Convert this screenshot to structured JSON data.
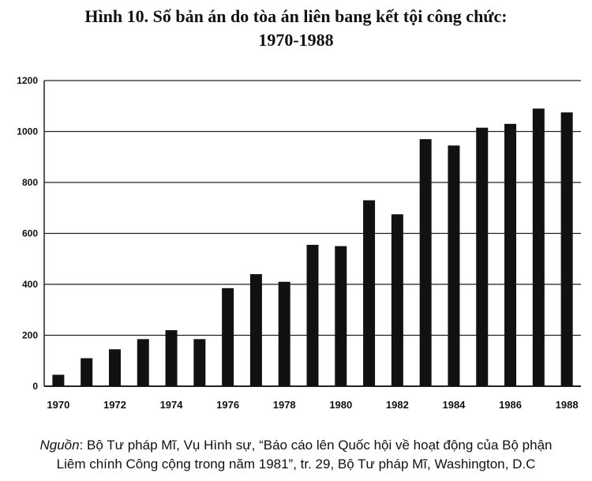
{
  "title_line1": "Hình 10. Số bản án do tòa án liên bang kết tội công chức:",
  "title_line2": "1970-1988",
  "source": {
    "label": "Nguồn",
    "line1_rest": ": Bộ Tư pháp Mĩ, Vụ Hình sự, “Báo cáo lên Quốc hội về hoạt động của Bộ phận",
    "line2": "Liêm chính Công cộng trong năm 1981”, tr. 29, Bộ Tư pháp Mĩ, Washington, D.C"
  },
  "chart_data": {
    "type": "bar",
    "title": "Hình 10. Số bản án do tòa án liên bang kết tội công chức: 1970-1988",
    "xlabel": "",
    "ylabel": "",
    "categories": [
      "1970",
      "1971",
      "1972",
      "1973",
      "1974",
      "1975",
      "1976",
      "1977",
      "1978",
      "1979",
      "1980",
      "1981",
      "1982",
      "1983",
      "1984",
      "1985",
      "1986",
      "1987",
      "1988"
    ],
    "values": [
      45,
      110,
      145,
      185,
      220,
      185,
      385,
      440,
      410,
      555,
      550,
      730,
      675,
      970,
      945,
      1015,
      1030,
      1090,
      1075
    ],
    "x_tick_labels": [
      "1970",
      "1972",
      "1974",
      "1976",
      "1978",
      "1980",
      "1982",
      "1984",
      "1986",
      "1988"
    ],
    "y_ticks": [
      0,
      200,
      400,
      600,
      800,
      1000,
      1200
    ],
    "ylim": [
      0,
      1200
    ],
    "grid": true,
    "bar_color": "#111111"
  }
}
